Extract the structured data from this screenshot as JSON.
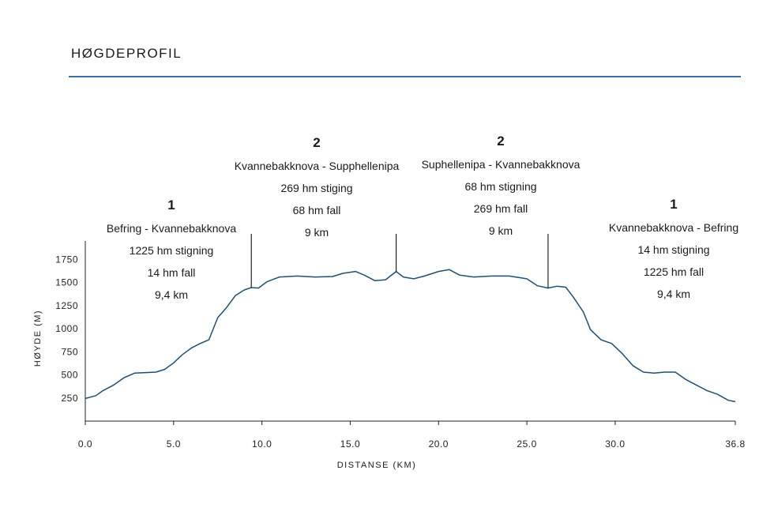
{
  "header": {
    "title": "HØGDEPROFIL"
  },
  "segments": [
    {
      "number": "1",
      "name": "Befring - Kvannebakknova",
      "climb": "1225 hm stigning",
      "descent": "14 hm fall",
      "distance": "9,4 km"
    },
    {
      "number": "2",
      "name": "Kvannebakknova - Supphellenipa",
      "climb": "269 hm stiging",
      "descent": "68 hm fall",
      "distance": "9 km"
    },
    {
      "number": "2",
      "name": "Suphellenipa - Kvannebakknova",
      "climb": "68 hm stigning",
      "descent": "269 hm fall",
      "distance": "9 km"
    },
    {
      "number": "1",
      "name": "Kvannebakknova - Befring",
      "climb": "14 hm stigning",
      "descent": "1225 hm fall",
      "distance": "9,4 km"
    }
  ],
  "chart_data": {
    "type": "line",
    "xlabel": "DISTANSE (KM)",
    "ylabel": "HØYDE (M)",
    "xlim": [
      0,
      36.8
    ],
    "ylim": [
      0,
      1950
    ],
    "x_ticks": [
      "0.0",
      "5.0",
      "10.0",
      "15.0",
      "20.0",
      "25.0",
      "30.0",
      "36.8"
    ],
    "x_tick_values": [
      0,
      5,
      10,
      15,
      20,
      25,
      30,
      36.8
    ],
    "y_ticks": [
      "250",
      "500",
      "750",
      "1000",
      "1250",
      "1500",
      "1750"
    ],
    "y_tick_values": [
      250,
      500,
      750,
      1000,
      1250,
      1500,
      1750
    ],
    "segment_markers_km": [
      9.4,
      17.6,
      26.2
    ],
    "series": [
      {
        "color": "#1f4f73",
        "x": [
          0,
          0.6,
          1.0,
          1.6,
          2.2,
          2.8,
          3.4,
          4.0,
          4.5,
          5.0,
          5.5,
          6.0,
          6.5,
          7.0,
          7.5,
          8.0,
          8.5,
          9.0,
          9.4,
          9.8,
          10.3,
          11.0,
          12.0,
          13.0,
          14.0,
          14.6,
          15.3,
          15.8,
          16.4,
          17.0,
          17.6,
          18.0,
          18.6,
          19.2,
          20.0,
          20.6,
          21.2,
          22.0,
          23.0,
          24.0,
          25.0,
          25.6,
          26.2,
          26.7,
          27.2,
          27.6,
          28.2,
          28.6,
          29.2,
          29.8,
          30.4,
          31.0,
          31.6,
          32.2,
          32.8,
          33.4,
          34.0,
          34.6,
          35.2,
          35.8,
          36.4,
          36.8
        ],
        "y": [
          245,
          275,
          330,
          390,
          470,
          520,
          525,
          530,
          560,
          630,
          720,
          790,
          840,
          880,
          1120,
          1230,
          1360,
          1420,
          1445,
          1440,
          1510,
          1560,
          1570,
          1560,
          1565,
          1600,
          1620,
          1580,
          1520,
          1530,
          1620,
          1560,
          1540,
          1570,
          1620,
          1640,
          1580,
          1560,
          1570,
          1570,
          1540,
          1465,
          1440,
          1460,
          1450,
          1350,
          1180,
          990,
          880,
          840,
          730,
          600,
          530,
          520,
          530,
          530,
          450,
          390,
          330,
          290,
          225,
          210
        ]
      }
    ]
  }
}
